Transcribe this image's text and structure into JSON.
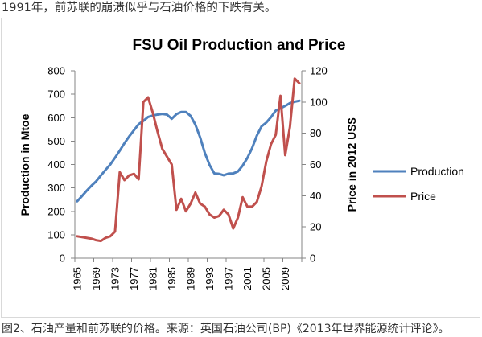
{
  "page": {
    "intro_text": "1991年，前苏联的崩溃似乎与石油价格的下跌有关。",
    "caption": "图2、石油产量和前苏联的价格。来源：英国石油公司(BP)《2013年世界能源统计评论》。"
  },
  "chart_data": {
    "type": "line",
    "title": "FSU Oil Production and Price",
    "x": [
      1965,
      1966,
      1967,
      1968,
      1969,
      1970,
      1971,
      1972,
      1973,
      1974,
      1975,
      1976,
      1977,
      1978,
      1979,
      1980,
      1981,
      1982,
      1983,
      1984,
      1985,
      1986,
      1987,
      1988,
      1989,
      1990,
      1991,
      1992,
      1993,
      1994,
      1995,
      1996,
      1997,
      1998,
      1999,
      2000,
      2001,
      2002,
      2003,
      2004,
      2005,
      2006,
      2007,
      2008,
      2009,
      2010,
      2011,
      2012
    ],
    "x_tick_labels": [
      "1965",
      "1969",
      "1973",
      "1977",
      "1981",
      "1985",
      "1989",
      "1993",
      "1997",
      "2001",
      "2005",
      "2009"
    ],
    "ylabel": "Production in Mtoe",
    "ylim": [
      0,
      800
    ],
    "y_ticks": [
      0,
      100,
      200,
      300,
      400,
      500,
      600,
      700,
      800
    ],
    "y2label": "Price in 2012 US$",
    "y2lim": [
      0,
      120
    ],
    "y2_ticks": [
      0,
      20,
      40,
      60,
      80,
      100,
      120
    ],
    "grid": false,
    "legend": "right",
    "series": [
      {
        "name": "Production",
        "axis": "left",
        "color": "#4F81BD",
        "values": [
          243,
          265,
          288,
          309,
          328,
          353,
          377,
          400,
          429,
          459,
          491,
          520,
          546,
          572,
          586,
          603,
          609,
          613,
          616,
          613,
          595,
          615,
          624,
          624,
          607,
          570,
          516,
          449,
          398,
          362,
          360,
          354,
          361,
          362,
          370,
          395,
          428,
          470,
          523,
          563,
          579,
          602,
          630,
          640,
          650,
          662,
          668,
          672
        ]
      },
      {
        "name": "Price",
        "axis": "right",
        "color": "#C0504D",
        "values": [
          14,
          13.5,
          13,
          12.5,
          11.5,
          11,
          13,
          14,
          17,
          55,
          50,
          53,
          54,
          50.5,
          100,
          103,
          93,
          81,
          70,
          65,
          60,
          31,
          38,
          30,
          35,
          42,
          35,
          33,
          28,
          26,
          27,
          31,
          28,
          19,
          26,
          39,
          33,
          33,
          36,
          46,
          62,
          73,
          79,
          104,
          66,
          84,
          115,
          112
        ]
      }
    ]
  }
}
